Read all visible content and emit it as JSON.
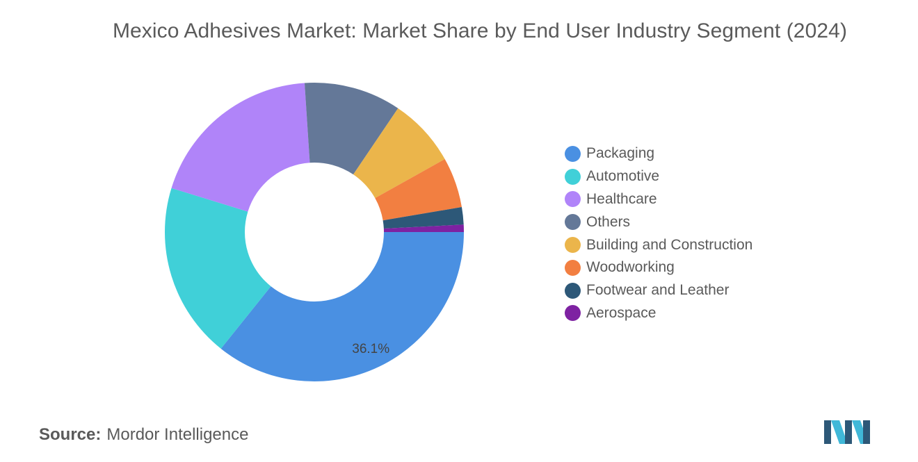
{
  "chart_data": {
    "type": "pie",
    "title": "Mexico Adhesives Market: Market Share by End User Industry Segment (2024)",
    "variant": "donut",
    "legend_position": "right",
    "categories": [
      "Packaging",
      "Automotive",
      "Healthcare",
      "Others",
      "Building and Construction",
      "Woodworking",
      "Footwear and Leather",
      "Aerospace"
    ],
    "values": [
      36.1,
      19.2,
      19.4,
      10.6,
      7.5,
      5.5,
      1.9,
      0.8
    ],
    "colors": [
      "#4a90e2",
      "#40d0d8",
      "#b084f9",
      "#647898",
      "#ebb54b",
      "#f27f41",
      "#2d5878",
      "#7e22a2"
    ],
    "data_labels": [
      {
        "category": "Packaging",
        "text": "36.1%"
      }
    ]
  },
  "source": {
    "label": "Source:",
    "value": "Mordor Intelligence"
  },
  "logo": {
    "icon": "mordor-intelligence-logo-icon",
    "colors": [
      "#2d5878",
      "#40b8d8"
    ]
  }
}
